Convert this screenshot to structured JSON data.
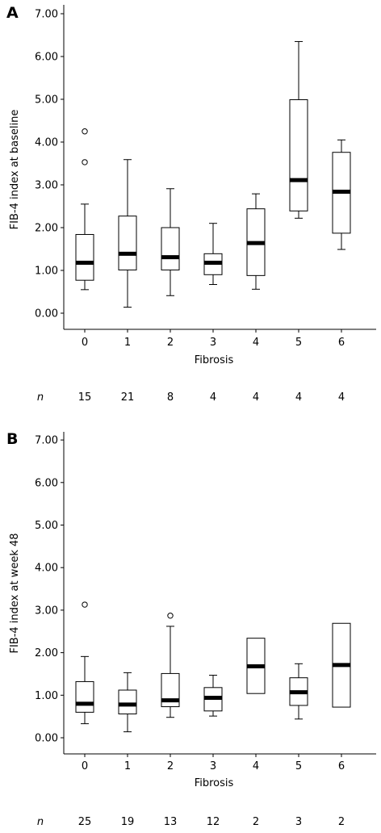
{
  "chart_data": [
    {
      "type": "boxplot",
      "panel_label": "A",
      "xlabel": "Fibrosis",
      "ylabel": "FIB-4 index at baseline",
      "ylim": [
        0,
        7
      ],
      "yticks": [
        "0.00",
        "1.00",
        "2.00",
        "3.00",
        "4.00",
        "5.00",
        "6.00",
        "7.00"
      ],
      "categories": [
        "0",
        "1",
        "2",
        "3",
        "4",
        "5",
        "6"
      ],
      "n_label": "n",
      "n_values": [
        "15",
        "21",
        "8",
        "4",
        "4",
        "4",
        "4"
      ],
      "boxes": [
        {
          "whisker_low": 0.55,
          "q1": 0.77,
          "median": 1.18,
          "q3": 1.84,
          "whisker_high": 2.55,
          "outliers": [
            3.53,
            4.25
          ]
        },
        {
          "whisker_low": 0.14,
          "q1": 1.01,
          "median": 1.39,
          "q3": 2.27,
          "whisker_high": 3.59,
          "outliers": []
        },
        {
          "whisker_low": 0.41,
          "q1": 1.01,
          "median": 1.31,
          "q3": 2.0,
          "whisker_high": 2.91,
          "outliers": []
        },
        {
          "whisker_low": 0.67,
          "q1": 0.9,
          "median": 1.18,
          "q3": 1.39,
          "whisker_high": 2.1,
          "outliers": []
        },
        {
          "whisker_low": 0.56,
          "q1": 0.88,
          "median": 1.64,
          "q3": 2.44,
          "whisker_high": 2.79,
          "outliers": []
        },
        {
          "whisker_low": 2.22,
          "q1": 2.39,
          "median": 3.11,
          "q3": 4.99,
          "whisker_high": 6.35,
          "outliers": []
        },
        {
          "whisker_low": 1.49,
          "q1": 1.87,
          "median": 2.84,
          "q3": 3.76,
          "whisker_high": 4.05,
          "outliers": []
        }
      ]
    },
    {
      "type": "boxplot",
      "panel_label": "B",
      "xlabel": "Fibrosis",
      "ylabel": "FIB-4 index at week 48",
      "ylim": [
        0,
        7
      ],
      "yticks": [
        "0.00",
        "1.00",
        "2.00",
        "3.00",
        "4.00",
        "5.00",
        "6.00",
        "7.00"
      ],
      "categories": [
        "0",
        "1",
        "2",
        "3",
        "4",
        "5",
        "6"
      ],
      "n_label": "n",
      "n_values": [
        "25",
        "19",
        "13",
        "12",
        "2",
        "3",
        "2"
      ],
      "boxes": [
        {
          "whisker_low": 0.33,
          "q1": 0.6,
          "median": 0.8,
          "q3": 1.32,
          "whisker_high": 1.91,
          "outliers": [
            3.13
          ]
        },
        {
          "whisker_low": 0.14,
          "q1": 0.56,
          "median": 0.78,
          "q3": 1.12,
          "whisker_high": 1.53,
          "outliers": []
        },
        {
          "whisker_low": 0.48,
          "q1": 0.73,
          "median": 0.88,
          "q3": 1.51,
          "whisker_high": 2.62,
          "outliers": [
            2.87
          ]
        },
        {
          "whisker_low": 0.51,
          "q1": 0.63,
          "median": 0.94,
          "q3": 1.18,
          "whisker_high": 1.47,
          "outliers": []
        },
        {
          "whisker_low": null,
          "q1": 1.04,
          "median": 1.68,
          "q3": 2.34,
          "whisker_high": null,
          "outliers": []
        },
        {
          "whisker_low": 0.44,
          "q1": 0.76,
          "median": 1.07,
          "q3": 1.41,
          "whisker_high": 1.74,
          "outliers": []
        },
        {
          "whisker_low": null,
          "q1": 0.72,
          "median": 1.71,
          "q3": 2.69,
          "whisker_high": null,
          "outliers": []
        }
      ]
    }
  ]
}
